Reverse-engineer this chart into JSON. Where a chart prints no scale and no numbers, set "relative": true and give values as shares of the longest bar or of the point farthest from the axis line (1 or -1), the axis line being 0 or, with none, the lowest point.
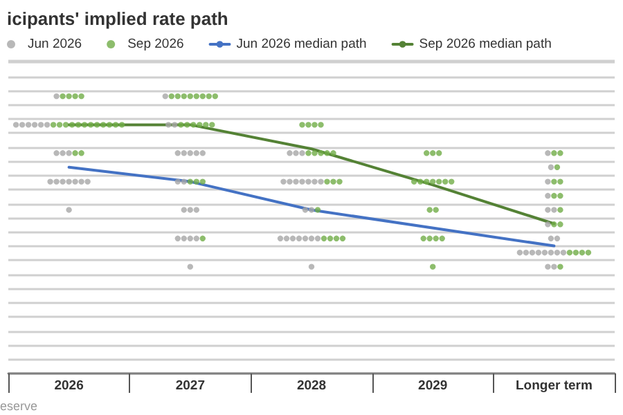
{
  "chart_data": {
    "type": "scatter",
    "title": "icipants' implied rate path",
    "relative": true,
    "grid": "y",
    "legend": "top left",
    "marker": "circle",
    "annotations": [
      "eserve"
    ],
    "categories": [
      "2026",
      "2027",
      "2028",
      "2029",
      "Longer term"
    ],
    "series": [
      {
        "name": "Jun 2026",
        "color": "#a6a6a6",
        "values": [
          1,
          1,
          0.795,
          null,
          0.795
        ]
      },
      {
        "color": "#a6a6a6",
        "values": [
          0.897,
          0.897,
          0.795,
          null,
          0.744
        ]
      },
      {
        "color": "#a6a6a6",
        "values": [
          0.897,
          0.897,
          0.795,
          null,
          0.692
        ]
      },
      {
        "color": "#a6a6a6",
        "values": [
          0.897,
          0.795,
          0.692,
          null,
          0.641
        ]
      },
      {
        "color": "#a6a6a6",
        "values": [
          0.897,
          0.795,
          0.692,
          null,
          0.59
        ]
      },
      {
        "color": "#a6a6a6",
        "values": [
          0.897,
          0.795,
          0.692,
          null,
          0.59
        ]
      },
      {
        "color": "#a6a6a6",
        "values": [
          0.897,
          0.795,
          0.692,
          null,
          0.538
        ]
      },
      {
        "color": "#a6a6a6",
        "values": [
          0.795,
          0.795,
          0.692,
          null,
          0.487
        ]
      },
      {
        "color": "#a6a6a6",
        "values": [
          0.795,
          0.692,
          0.692,
          null,
          0.487
        ]
      },
      {
        "color": "#a6a6a6",
        "values": [
          0.795,
          0.692,
          0.692,
          null,
          0.436
        ]
      },
      {
        "color": "#a6a6a6",
        "values": [
          0.692,
          0.59,
          0.59,
          null,
          0.436
        ]
      },
      {
        "color": "#a6a6a6",
        "values": [
          0.692,
          0.59,
          0.59,
          null,
          0.436
        ]
      },
      {
        "color": "#a6a6a6",
        "values": [
          0.692,
          0.59,
          0.487,
          null,
          0.436
        ]
      },
      {
        "color": "#a6a6a6",
        "values": [
          0.692,
          0.487,
          0.487,
          null,
          0.436
        ]
      },
      {
        "color": "#a6a6a6",
        "values": [
          0.692,
          0.487,
          0.487,
          null,
          0.436
        ]
      },
      {
        "color": "#a6a6a6",
        "values": [
          0.692,
          0.487,
          0.487,
          null,
          0.436
        ]
      },
      {
        "color": "#a6a6a6",
        "values": [
          0.692,
          0.487,
          0.487,
          null,
          0.436
        ]
      },
      {
        "color": "#a6a6a6",
        "values": [
          0.59,
          0.385,
          0.487,
          null,
          0.385
        ]
      },
      {
        "color": "#a6a6a6",
        "values": [
          null,
          null,
          0.487,
          null,
          0.385
        ]
      },
      {
        "color": "#a6a6a6",
        "values": [
          null,
          null,
          0.385,
          null,
          null
        ]
      },
      {
        "name": "Sep 2026",
        "color": "#70ad47",
        "values": [
          1,
          1,
          0.897,
          0.795,
          0.795
        ]
      },
      {
        "color": "#70ad47",
        "values": [
          1,
          1,
          0.897,
          0.795,
          0.795
        ]
      },
      {
        "color": "#70ad47",
        "values": [
          1,
          1,
          0.897,
          0.795,
          0.744
        ]
      },
      {
        "color": "#70ad47",
        "values": [
          1,
          1,
          0.897,
          0.692,
          0.692
        ]
      },
      {
        "color": "#70ad47",
        "values": [
          0.897,
          1,
          0.795,
          0.692,
          0.692
        ]
      },
      {
        "color": "#70ad47",
        "values": [
          0.897,
          1,
          0.795,
          0.692,
          0.641
        ]
      },
      {
        "color": "#70ad47",
        "values": [
          0.897,
          1,
          0.795,
          0.692,
          0.641
        ]
      },
      {
        "color": "#70ad47",
        "values": [
          0.897,
          1,
          0.795,
          0.692,
          0.59
        ]
      },
      {
        "color": "#70ad47",
        "values": [
          0.897,
          0.897,
          0.795,
          0.692,
          0.538
        ]
      },
      {
        "color": "#70ad47",
        "values": [
          0.897,
          0.897,
          0.692,
          0.692,
          0.538
        ]
      },
      {
        "color": "#70ad47",
        "values": [
          0.897,
          0.897,
          0.692,
          0.59,
          0.436
        ]
      },
      {
        "color": "#70ad47",
        "values": [
          0.897,
          0.897,
          0.692,
          0.59,
          0.436
        ]
      },
      {
        "color": "#70ad47",
        "values": [
          0.897,
          0.897,
          0.59,
          0.487,
          0.436
        ]
      },
      {
        "color": "#70ad47",
        "values": [
          0.897,
          0.897,
          0.487,
          0.487,
          0.436
        ]
      },
      {
        "color": "#70ad47",
        "values": [
          0.897,
          0.692,
          0.487,
          0.487,
          0.385
        ]
      },
      {
        "color": "#70ad47",
        "values": [
          0.897,
          0.692,
          0.487,
          0.487,
          null
        ]
      },
      {
        "color": "#70ad47",
        "values": [
          0.795,
          0.692,
          0.487,
          0.385,
          null
        ]
      },
      {
        "color": "#70ad47",
        "values": [
          0.795,
          0.487,
          null,
          null,
          null
        ]
      },
      {
        "name": "Jun 2026 median path",
        "type": "line",
        "marker": "none",
        "color": "#4472c4",
        "values": [
          0.744,
          0.692,
          0.59,
          null,
          0.46
        ]
      },
      {
        "name": "Sep 2026 median path",
        "type": "line",
        "marker": "none",
        "color": "#548235",
        "values": [
          0.897,
          0.897,
          0.81,
          0.68,
          0.54
        ]
      }
    ]
  }
}
